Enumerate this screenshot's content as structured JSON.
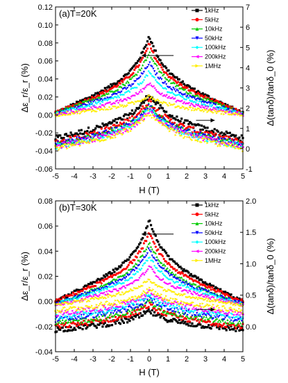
{
  "chart_data": [
    {
      "type": "scatter",
      "panel_label": "(a)T=20K",
      "xlabel": "H (T)",
      "ylabel_left": "Δε_r/ε_r (%)",
      "ylabel_right": "Δ(tanδ)/tanδ_0 (%)",
      "xlim": [
        -5,
        5
      ],
      "ylim_left": [
        -0.06,
        0.12
      ],
      "ylim_right": [
        -1,
        7
      ],
      "x_ticks": [
        "-5",
        "-4",
        "-3",
        "-2",
        "-1",
        "0",
        "1",
        "2",
        "3",
        "4",
        "5"
      ],
      "y_ticks_left": [
        "-0.06",
        "-0.04",
        "-0.02",
        "0.00",
        "0.02",
        "0.04",
        "0.06",
        "0.08",
        "0.10",
        "0.12"
      ],
      "y_ticks_right": [
        "-1",
        "0",
        "1",
        "2",
        "3",
        "4",
        "5",
        "6",
        "7"
      ],
      "legend_placement": "top-right",
      "series": [
        {
          "name": "1kHz",
          "color": "#000000",
          "marker": "square",
          "left_peak": 0.088,
          "left_edge": 0.002,
          "right_peak": 2.7,
          "right_edge": 0.5
        },
        {
          "name": "5kHz",
          "color": "#ff0000",
          "marker": "circle",
          "left_peak": 0.079,
          "left_edge": 0.002,
          "right_peak": 2.4,
          "right_edge": 0.3
        },
        {
          "name": "10kHz",
          "color": "#00cc00",
          "marker": "triangle-up",
          "left_peak": 0.07,
          "left_edge": 0.002,
          "right_peak": 2.2,
          "right_edge": 0.2
        },
        {
          "name": "50kHz",
          "color": "#0000ff",
          "marker": "triangle-down",
          "left_peak": 0.058,
          "left_edge": 0.001,
          "right_peak": 2.1,
          "right_edge": 0.2
        },
        {
          "name": "100kHz",
          "color": "#00ffff",
          "marker": "diamond",
          "left_peak": 0.048,
          "left_edge": 0.001,
          "right_peak": 2.0,
          "right_edge": 0.1
        },
        {
          "name": "200kHz",
          "color": "#ff00ff",
          "marker": "triangle-left",
          "left_peak": 0.036,
          "left_edge": 0.0,
          "right_peak": 1.9,
          "right_edge": 0.1
        },
        {
          "name": "1MHz",
          "color": "#ffee00",
          "marker": "triangle-right",
          "left_peak": 0.022,
          "left_edge": 0.0,
          "right_peak": 1.8,
          "right_edge": 0.0
        }
      ]
    },
    {
      "type": "scatter",
      "panel_label": "(b)T=30K",
      "xlabel": "H (T)",
      "ylabel_left": "Δε_r/ε_r (%)",
      "ylabel_right": "Δ(tanδ)/tanδ_0 (%)",
      "xlim": [
        -5,
        5
      ],
      "ylim_left": [
        -0.04,
        0.08
      ],
      "ylim_right": [
        -0.4,
        2.0
      ],
      "x_ticks": [
        "-5",
        "-4",
        "-3",
        "-2",
        "-1",
        "0",
        "1",
        "2",
        "3",
        "4",
        "5"
      ],
      "y_ticks_left": [
        "-0.04",
        "-0.02",
        "0.00",
        "0.02",
        "0.04",
        "0.06",
        "0.08"
      ],
      "y_ticks_right": [
        "0.0",
        "0.5",
        "1.0",
        "1.5",
        "2.0"
      ],
      "legend_placement": "top-right",
      "series": [
        {
          "name": "1kHz",
          "color": "#000000",
          "marker": "square",
          "left_peak": 0.065,
          "left_edge": 0.0,
          "right_peak": 0.25,
          "right_edge": -0.05
        },
        {
          "name": "5kHz",
          "color": "#ff0000",
          "marker": "circle",
          "left_peak": 0.055,
          "left_edge": 0.0,
          "right_peak": 0.35,
          "right_edge": 0.0
        },
        {
          "name": "10kHz",
          "color": "#00cc00",
          "marker": "triangle-up",
          "left_peak": 0.048,
          "left_edge": -0.002,
          "right_peak": 0.4,
          "right_edge": 0.05
        },
        {
          "name": "50kHz",
          "color": "#0000ff",
          "marker": "triangle-down",
          "left_peak": 0.042,
          "left_edge": -0.002,
          "right_peak": 0.45,
          "right_edge": 0.1
        },
        {
          "name": "100kHz",
          "color": "#00ffff",
          "marker": "diamond",
          "left_peak": 0.036,
          "left_edge": -0.002,
          "right_peak": 0.5,
          "right_edge": 0.15
        },
        {
          "name": "200kHz",
          "color": "#ff00ff",
          "marker": "triangle-left",
          "left_peak": 0.028,
          "left_edge": -0.003,
          "right_peak": 0.55,
          "right_edge": 0.2
        },
        {
          "name": "1MHz",
          "color": "#ffee00",
          "marker": "triangle-right",
          "left_peak": 0.018,
          "left_edge": -0.003,
          "right_peak": 0.6,
          "right_edge": 0.25
        }
      ]
    }
  ]
}
